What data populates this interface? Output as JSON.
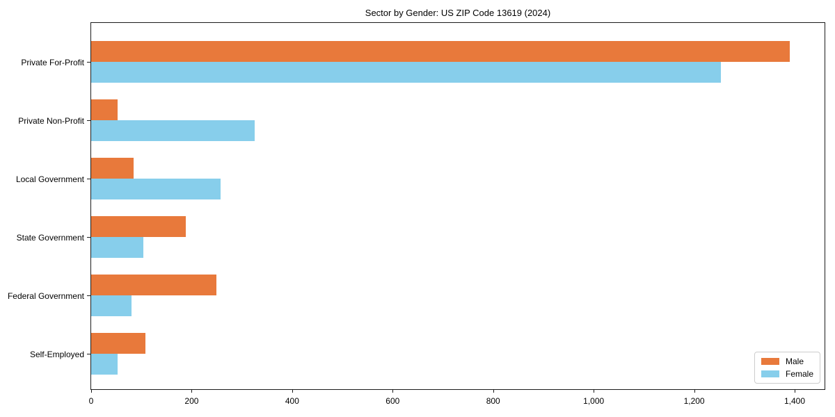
{
  "title": "Sector by Gender: US ZIP Code 13619 (2024)",
  "chart_data": {
    "type": "bar",
    "orientation": "horizontal",
    "title": "Sector by Gender: US ZIP Code 13619 (2024)",
    "categories": [
      "Private For-Profit",
      "Private Non-Profit",
      "Local Government",
      "State Government",
      "Federal Government",
      "Self-Employed"
    ],
    "series": [
      {
        "name": "Male",
        "color": "#e8793b",
        "values": [
          1390,
          52,
          85,
          188,
          249,
          108
        ]
      },
      {
        "name": "Female",
        "color": "#87ceeb",
        "values": [
          1253,
          325,
          258,
          104,
          80,
          52
        ]
      }
    ],
    "xlabel": "",
    "ylabel": "",
    "xlim": [
      0,
      1459.5
    ],
    "xticks": [
      0,
      200,
      400,
      600,
      800,
      1000,
      1200,
      1400
    ],
    "xtick_labels": [
      "0",
      "200",
      "400",
      "600",
      "800",
      "1,000",
      "1,200",
      "1,400"
    ],
    "grid": false,
    "legend_position": "lower right"
  }
}
